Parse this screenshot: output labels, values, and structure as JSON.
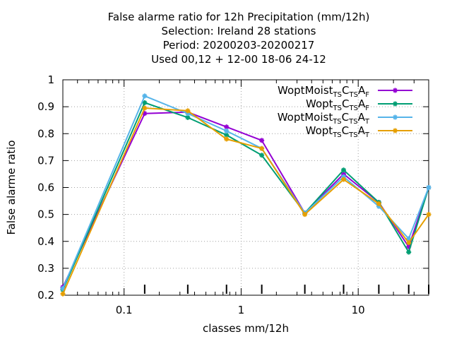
{
  "title_lines": [
    "False alarme ratio  for 12h Precipitation (mm/12h)",
    "Selection: Ireland      28 stations",
    "Period: 20200203-20200217",
    "Used  00,12  + 12-00 18-06 24-12"
  ],
  "chart_data": {
    "type": "line",
    "xlabel": "classes mm/12h",
    "ylabel": "False alarme ratio",
    "xscale": "log",
    "xlim": [
      0.03,
      40
    ],
    "ylim": [
      0.2,
      1.0
    ],
    "xticks": [
      {
        "value": 0.1,
        "label": "0.1"
      },
      {
        "value": 1,
        "label": "1"
      },
      {
        "value": 10,
        "label": "10"
      }
    ],
    "yticks": [
      {
        "value": 0.2,
        "label": "0.2"
      },
      {
        "value": 0.3,
        "label": "0.3"
      },
      {
        "value": 0.4,
        "label": "0.4"
      },
      {
        "value": 0.5,
        "label": "0.5"
      },
      {
        "value": 0.6,
        "label": "0.6"
      },
      {
        "value": 0.7,
        "label": "0.7"
      },
      {
        "value": 0.8,
        "label": "0.8"
      },
      {
        "value": 0.9,
        "label": "0.9"
      },
      {
        "value": 1.0,
        "label": "1"
      }
    ],
    "grid": true,
    "legend_position": "top-right",
    "x": [
      0.03,
      0.15,
      0.35,
      0.75,
      1.5,
      3.5,
      7.5,
      15,
      27,
      40
    ],
    "series": [
      {
        "name": "WoptMoist TS CTS AF",
        "parts": [
          [
            "WoptMoist",
            ""
          ],
          [
            "TS",
            "sub"
          ],
          [
            "C",
            ""
          ],
          [
            "TS",
            "sub"
          ],
          [
            "A",
            ""
          ],
          [
            "F",
            "sub"
          ]
        ],
        "color": "#9400d3",
        "values": [
          0.23,
          0.875,
          0.88,
          0.825,
          0.775,
          0.505,
          0.65,
          0.545,
          0.38,
          0.6
        ]
      },
      {
        "name": "Wopt TS CTS AF",
        "parts": [
          [
            "Wopt",
            ""
          ],
          [
            "TS",
            "sub"
          ],
          [
            "C",
            ""
          ],
          [
            "TS",
            "sub"
          ],
          [
            "A",
            ""
          ],
          [
            "F",
            "sub"
          ]
        ],
        "color": "#009e73",
        "values": [
          0.22,
          0.915,
          0.86,
          0.795,
          0.72,
          0.505,
          0.665,
          0.545,
          0.36,
          0.6
        ]
      },
      {
        "name": "WoptMoist TS CTS AT",
        "parts": [
          [
            "WoptMoist",
            ""
          ],
          [
            "TS",
            "sub"
          ],
          [
            "C",
            ""
          ],
          [
            "TS",
            "sub"
          ],
          [
            "A",
            ""
          ],
          [
            "T",
            "sub"
          ]
        ],
        "color": "#56b4e9",
        "values": [
          0.225,
          0.94,
          0.875,
          0.81,
          0.745,
          0.505,
          0.64,
          0.53,
          0.41,
          0.6
        ]
      },
      {
        "name": "Wopt TS CTS AT",
        "parts": [
          [
            "Wopt",
            ""
          ],
          [
            "TS",
            "sub"
          ],
          [
            "C",
            ""
          ],
          [
            "TS",
            "sub"
          ],
          [
            "A",
            ""
          ],
          [
            "T",
            "sub"
          ]
        ],
        "color": "#e69f00",
        "values": [
          0.205,
          0.895,
          0.885,
          0.78,
          0.745,
          0.5,
          0.63,
          0.54,
          0.395,
          0.5
        ]
      }
    ]
  }
}
